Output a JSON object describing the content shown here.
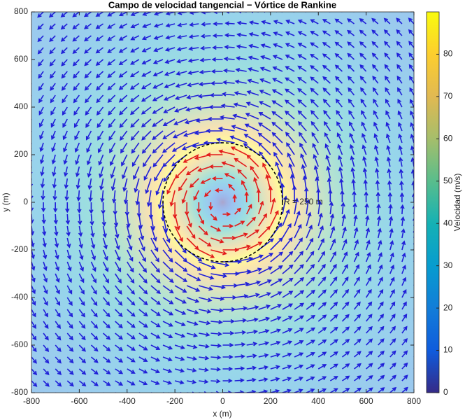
{
  "chart_data": {
    "type": "quiver",
    "title": "Campo de velocidad tangencial − Vórtice de Rankine",
    "x_label": "x (m)",
    "y_label": "y (m)",
    "grid_x": [
      -800,
      -750,
      -700,
      -650,
      -600,
      -550,
      -500,
      -450,
      -400,
      -350,
      -300,
      -250,
      -200,
      -150,
      -100,
      -50,
      0,
      50,
      100,
      150,
      200,
      250,
      300,
      350,
      400,
      450,
      500,
      550,
      600,
      650,
      700,
      750,
      800
    ],
    "grid_y": [
      -800,
      -750,
      -700,
      -650,
      -600,
      -550,
      -500,
      -450,
      -400,
      -350,
      -300,
      -250,
      -200,
      -150,
      -100,
      -50,
      0,
      50,
      100,
      150,
      200,
      250,
      300,
      350,
      400,
      450,
      500,
      550,
      600,
      650,
      700,
      750,
      800
    ],
    "vmax": 90,
    "core_radius": 250,
    "annotation": "R = 250 m",
    "xlim": [
      -800,
      800
    ],
    "ylim": [
      -800,
      800
    ],
    "xticks": [
      -800,
      -600,
      -400,
      -200,
      0,
      200,
      400,
      600,
      800
    ],
    "yticks": [
      -800,
      -600,
      -400,
      -200,
      0,
      200,
      400,
      600,
      800
    ],
    "colorbar": {
      "label": "Velocidad (m/s)",
      "clim": [
        0,
        90
      ],
      "ticks": [
        0,
        10,
        20,
        30,
        40,
        50,
        60,
        70,
        80
      ],
      "colormap": "parula"
    },
    "inner_color": "#e31a1a",
    "outer_color": "#2020d8"
  }
}
